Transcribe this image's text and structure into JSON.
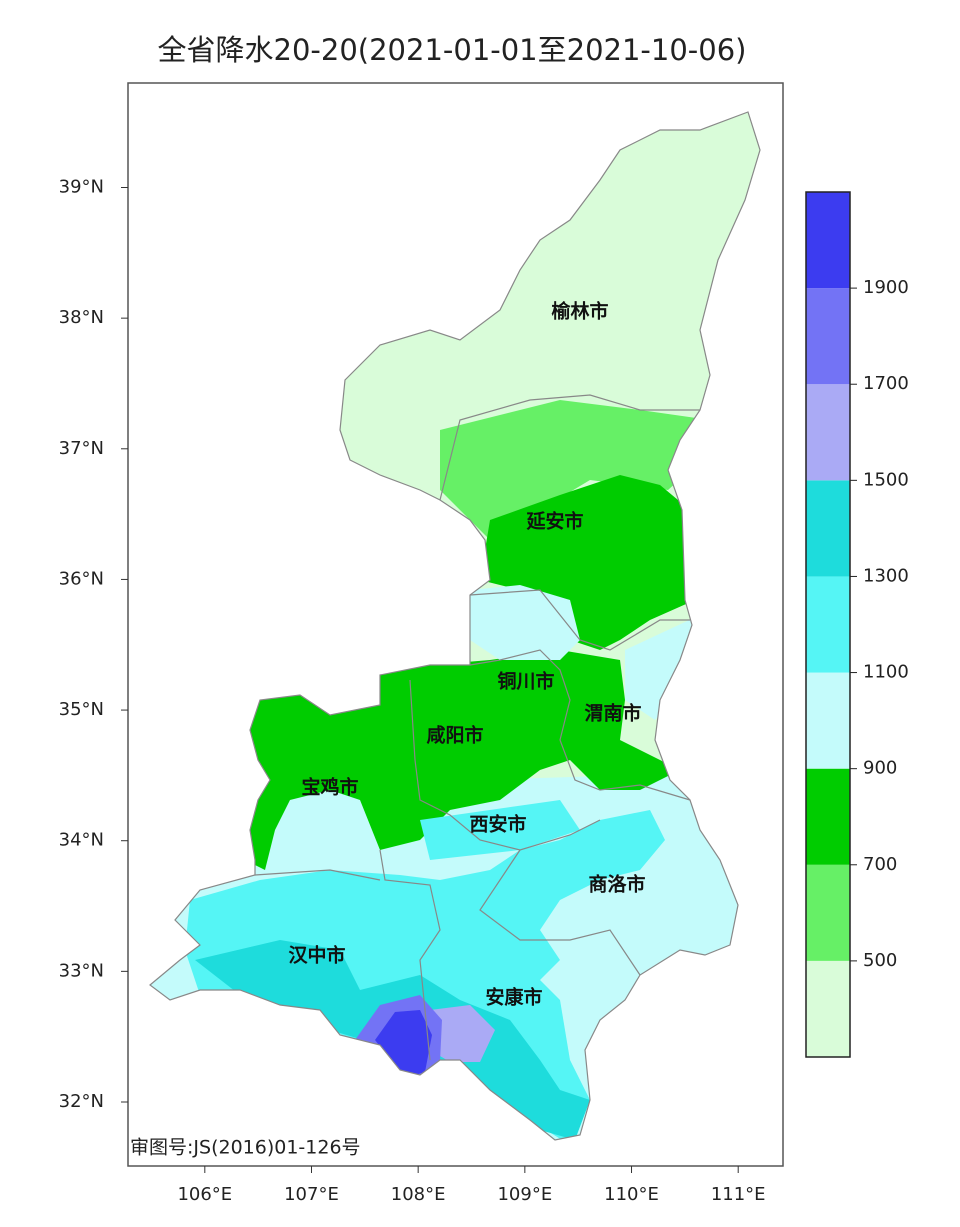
{
  "title": "全省降水20-20(2021-01-01至2021-10-06)",
  "map": {
    "xlim": [
      105.28,
      111.42
    ],
    "ylim": [
      31.51,
      39.8
    ],
    "xticks": [
      {
        "value": 106,
        "label": "106°E"
      },
      {
        "value": 107,
        "label": "107°E"
      },
      {
        "value": 108,
        "label": "108°E"
      },
      {
        "value": 109,
        "label": "109°E"
      },
      {
        "value": 110,
        "label": "110°E"
      },
      {
        "value": 111,
        "label": "111°E"
      }
    ],
    "yticks": [
      {
        "value": 32,
        "label": "32°N"
      },
      {
        "value": 33,
        "label": "33°N"
      },
      {
        "value": 34,
        "label": "34°N"
      },
      {
        "value": 35,
        "label": "35°N"
      },
      {
        "value": 36,
        "label": "36°N"
      },
      {
        "value": 37,
        "label": "37°N"
      },
      {
        "value": 38,
        "label": "38°N"
      },
      {
        "value": 39,
        "label": "39°N"
      }
    ],
    "cities": [
      "榆林市",
      "延安市",
      "铜川市",
      "渭南市",
      "咸阳市",
      "宝鸡市",
      "西安市",
      "商洛市",
      "汉中市",
      "安康市"
    ],
    "footnote": "审图号:JS(2016)01-126号"
  },
  "colorbar": {
    "levels": [
      300,
      500,
      700,
      900,
      1100,
      1300,
      1500,
      1700,
      1900,
      2100
    ],
    "colors": [
      "#d9fcd9",
      "#66f066",
      "#00cc00",
      "#c4fbfb",
      "#55f5f5",
      "#1edcdc",
      "#aaaaf5",
      "#7373f5",
      "#3c3cf0"
    ],
    "ticks": [
      500,
      700,
      900,
      1100,
      1300,
      1500,
      1700,
      1900
    ]
  }
}
